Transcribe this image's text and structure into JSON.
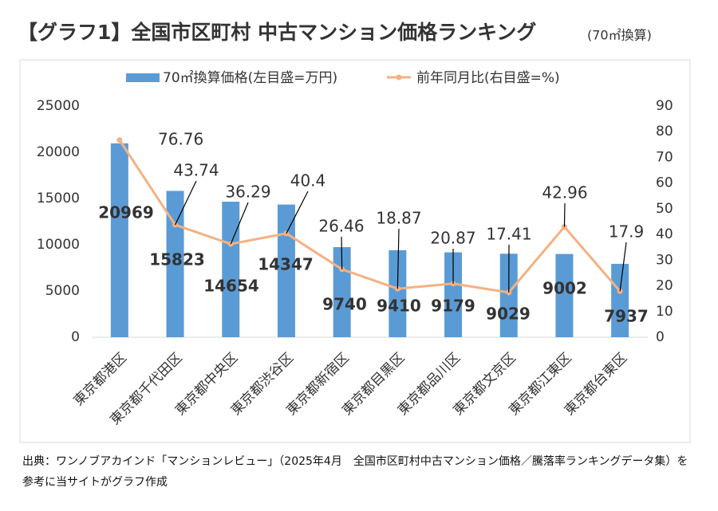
{
  "chart_data": {
    "type": "combo",
    "title": "【グラフ1】全国市区町村 中古マンション価格ランキング",
    "title_note": "(70㎡換算)",
    "categories": [
      "東京都港区",
      "東京都千代田区",
      "東京都中央区",
      "東京都渋谷区",
      "東京都新宿区",
      "東京都目黒区",
      "東京都品川区",
      "東京都文京区",
      "東京都江東区",
      "東京都台東区"
    ],
    "series": [
      {
        "name": "70㎡換算価格(左目盛=万円)",
        "type": "bar",
        "color": "#5b9bd5",
        "values": [
          20969,
          15823,
          14654,
          14347,
          9740,
          9410,
          9179,
          9029,
          9002,
          7937
        ]
      },
      {
        "name": "前年同月比(右目盛=%)",
        "type": "line",
        "axis": "y2",
        "color": "#f4b183",
        "values": [
          76.76,
          43.74,
          36.29,
          40.4,
          26.46,
          18.87,
          20.87,
          17.41,
          42.96,
          17.9
        ]
      }
    ],
    "ylim": [
      0,
      25000
    ],
    "yticks": [
      0,
      5000,
      10000,
      15000,
      20000,
      25000
    ],
    "y2lim": [
      0,
      90
    ],
    "y2ticks": [
      0,
      10,
      20,
      30,
      40,
      50,
      60,
      70,
      80,
      90
    ],
    "legend": "top",
    "source": "出典：ワンノブアカインド「マンションレビュー」（2025年4月　全国市区町村中古マンション価格／騰落率ランキングデータ集）を参考に当サイトがグラフ作成"
  }
}
